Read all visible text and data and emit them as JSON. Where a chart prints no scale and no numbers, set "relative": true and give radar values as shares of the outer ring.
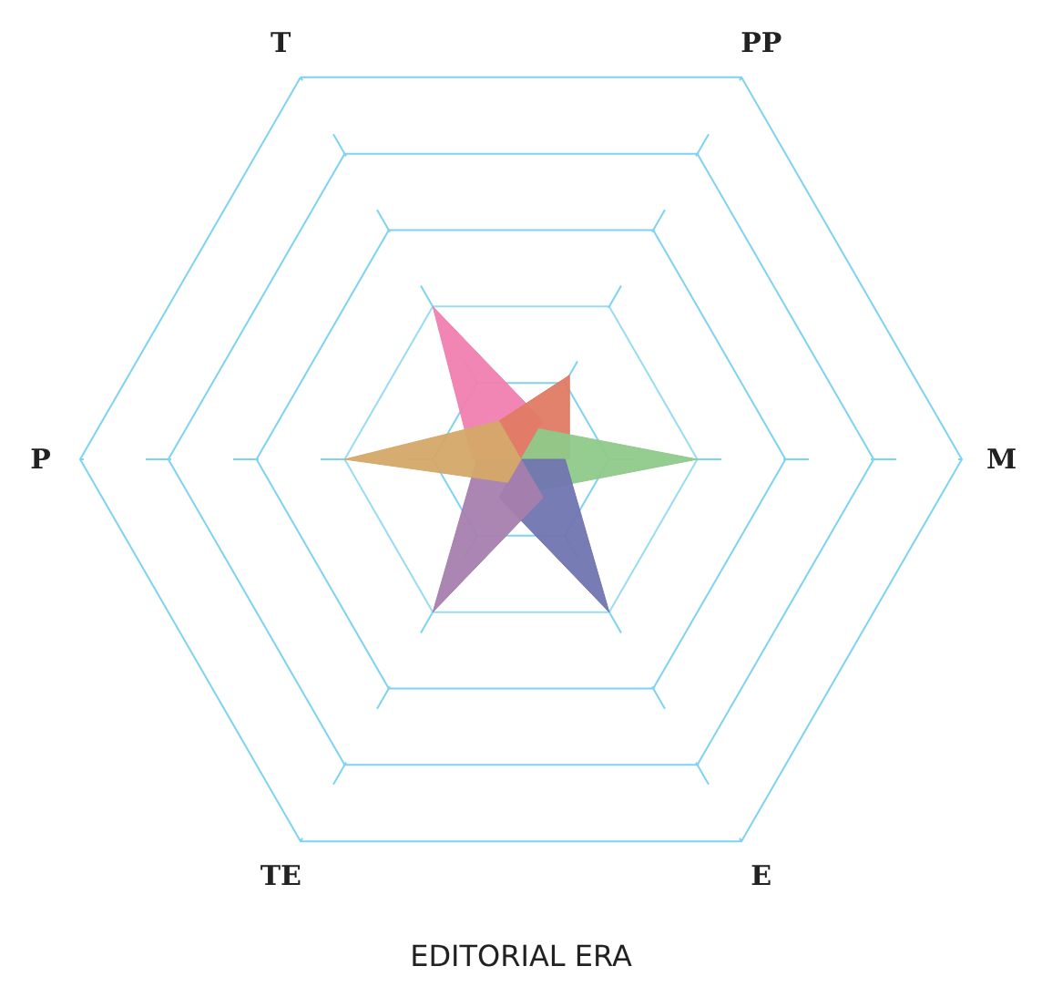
{
  "chart_data": {
    "type": "radar",
    "relative": true,
    "xlabel": "EDITORIAL ERA",
    "categories": [
      "T",
      "PP",
      "M",
      "E",
      "TE",
      "P"
    ],
    "grid": true,
    "series": [
      {
        "color": "#f07fb0",
        "values": [
          0.4,
          0.1,
          0,
          0,
          0,
          0.11
        ]
      },
      {
        "color": "#e07b65",
        "values": [
          0.1,
          0.22,
          0.11,
          0,
          0,
          0
        ]
      },
      {
        "color": "#8fc98a",
        "values": [
          0,
          0.08,
          0.4,
          0.08,
          0,
          0
        ]
      },
      {
        "color": "#7075b0",
        "values": [
          0,
          0,
          0.1,
          0.4,
          0.1,
          0
        ]
      },
      {
        "color": "#a77fae",
        "values": [
          0,
          0,
          0,
          0.1,
          0.4,
          0.1
        ]
      },
      {
        "color": "#d4a868",
        "values": [
          0.1,
          0,
          0,
          0,
          0.06,
          0.4
        ]
      }
    ]
  }
}
